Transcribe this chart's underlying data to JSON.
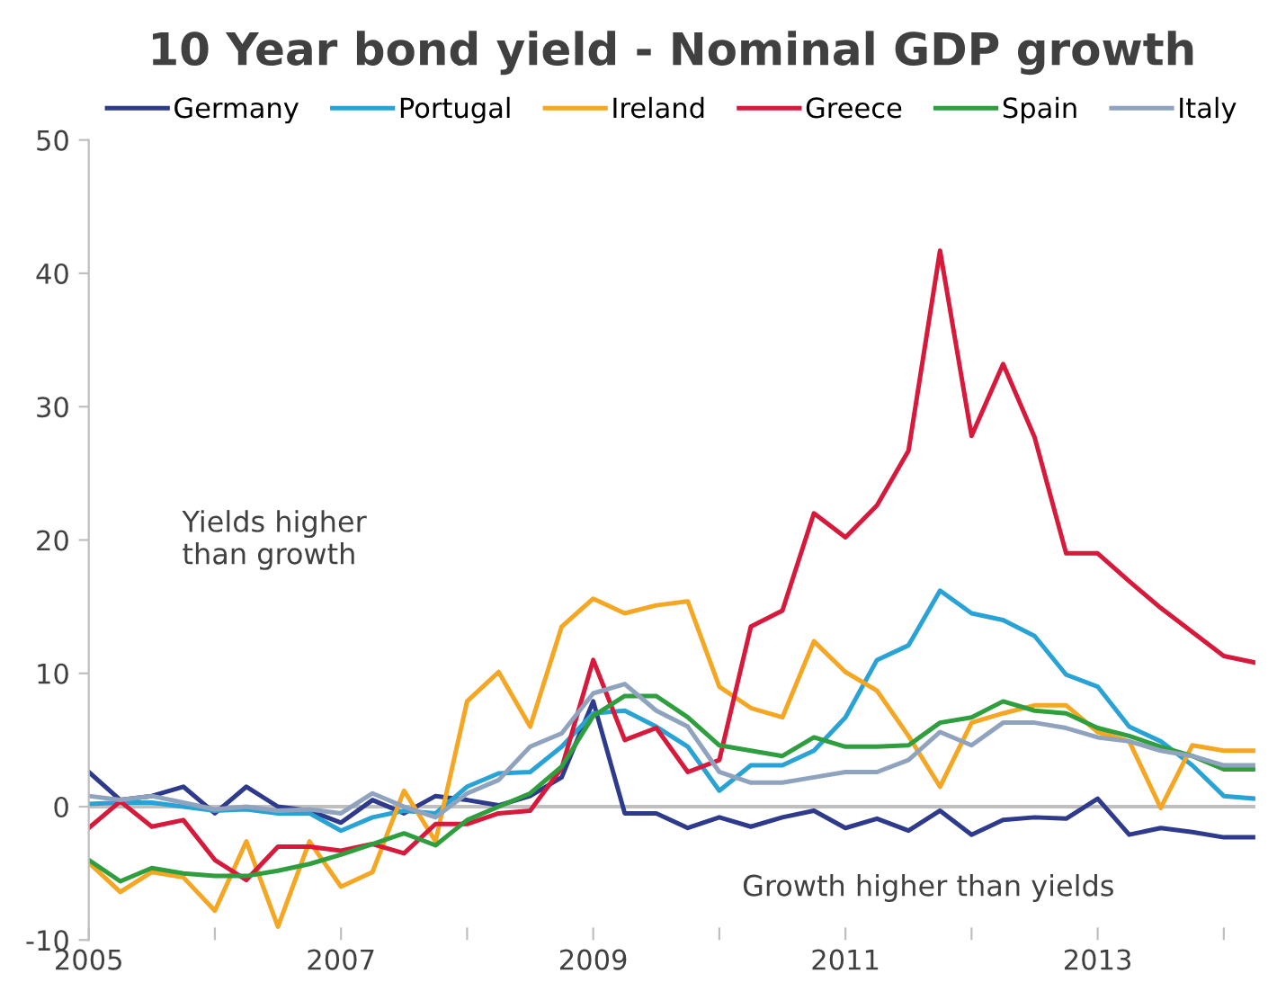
{
  "chart_data": {
    "type": "line",
    "title": "10 Year bond yield - Nominal GDP growth",
    "x": [
      2005.0,
      2005.25,
      2005.5,
      2005.75,
      2006.0,
      2006.25,
      2006.5,
      2006.75,
      2007.0,
      2007.25,
      2007.5,
      2007.75,
      2008.0,
      2008.25,
      2008.5,
      2008.75,
      2009.0,
      2009.25,
      2009.5,
      2009.75,
      2010.0,
      2010.25,
      2010.5,
      2010.75,
      2011.0,
      2011.25,
      2011.5,
      2011.75,
      2012.0,
      2012.25,
      2012.5,
      2012.75,
      2013.0,
      2013.25,
      2013.5,
      2013.75,
      2014.0,
      2014.25
    ],
    "series": [
      {
        "name": "Germany",
        "color": "#2e3a8c",
        "values": [
          2.6,
          0.5,
          0.8,
          1.5,
          -0.5,
          1.5,
          0,
          -0.3,
          -1.2,
          0.5,
          -0.5,
          0.8,
          0.5,
          0.1,
          0.8,
          2.2,
          7.9,
          -0.5,
          -0.5,
          -1.6,
          -0.8,
          -1.5,
          -0.8,
          -0.3,
          -1.6,
          -0.9,
          -1.8,
          -0.3,
          -2.1,
          -1.0,
          -0.8,
          -0.9,
          0.6,
          -2.1,
          -1.6,
          -1.9,
          -2.3,
          -2.3
        ]
      },
      {
        "name": "Portugal",
        "color": "#29a3d6",
        "values": [
          0.2,
          0.3,
          0.3,
          0,
          -0.3,
          -0.2,
          -0.5,
          -0.5,
          -1.8,
          -0.8,
          -0.3,
          -0.5,
          1.5,
          2.5,
          2.6,
          4.5,
          7.0,
          7.2,
          6.0,
          4.5,
          1.2,
          3.1,
          3.1,
          4.2,
          6.7,
          11.0,
          12.1,
          16.2,
          14.5,
          14.0,
          12.8,
          9.9,
          9.0,
          6.0,
          4.9,
          3.1,
          0.8,
          0.6
        ]
      },
      {
        "name": "Ireland",
        "color": "#f5a623",
        "values": [
          -4.2,
          -6.4,
          -4.9,
          -5.3,
          -7.8,
          -2.6,
          -9.0,
          -2.6,
          -6.0,
          -4.9,
          1.2,
          -2.6,
          7.9,
          10.1,
          6.0,
          13.5,
          15.6,
          14.5,
          15.1,
          15.4,
          9.0,
          7.4,
          6.7,
          12.4,
          10.1,
          8.7,
          5.3,
          1.5,
          6.3,
          7.0,
          7.6,
          7.6,
          5.6,
          4.9,
          -0.1,
          4.6,
          4.2,
          4.2
        ]
      },
      {
        "name": "Greece",
        "color": "#d7193c",
        "values": [
          -1.6,
          0.4,
          -1.5,
          -1.0,
          -4.0,
          -5.5,
          -3.0,
          -3.0,
          -3.3,
          -2.8,
          -3.5,
          -1.3,
          -1.3,
          -0.5,
          -0.3,
          2.9,
          11.0,
          5.0,
          5.9,
          2.6,
          3.5,
          13.5,
          14.7,
          22.0,
          20.2,
          22.6,
          26.7,
          41.7,
          27.8,
          33.2,
          27.7,
          19.0,
          19.0,
          16.9,
          14.9,
          13.1,
          11.3,
          10.8
        ]
      },
      {
        "name": "Spain",
        "color": "#2e9e3e",
        "values": [
          -4.0,
          -5.6,
          -4.6,
          -5.0,
          -5.2,
          -5.2,
          -4.8,
          -4.3,
          -3.6,
          -2.8,
          -2.0,
          -2.9,
          -1.0,
          0,
          1.0,
          3.0,
          6.8,
          8.3,
          8.3,
          6.7,
          4.6,
          4.2,
          3.8,
          5.2,
          4.5,
          4.5,
          4.6,
          6.3,
          6.7,
          7.9,
          7.2,
          7.0,
          5.9,
          5.3,
          4.5,
          3.8,
          2.8,
          2.8
        ]
      },
      {
        "name": "Italy",
        "color": "#8fa3bf",
        "values": [
          0.8,
          0.5,
          0.8,
          0.3,
          -0.2,
          0,
          -0.3,
          -0.2,
          -0.5,
          1.0,
          0,
          -0.8,
          1.0,
          2.0,
          4.5,
          5.5,
          8.5,
          9.2,
          7.2,
          6.0,
          2.6,
          1.8,
          1.8,
          2.2,
          2.6,
          2.6,
          3.5,
          5.6,
          4.6,
          6.3,
          6.3,
          5.9,
          5.2,
          4.9,
          4.2,
          3.8,
          3.1,
          3.1
        ]
      }
    ],
    "xlim": [
      2005,
      2014.25
    ],
    "xticks": [
      2005,
      {
        "value": 2006,
        "label": null
      },
      2007,
      {
        "value": 2008,
        "label": null
      },
      2009,
      {
        "value": 2010,
        "label": null
      },
      2011,
      {
        "value": 2012,
        "label": null
      },
      2013,
      {
        "value": 2014,
        "label": null
      }
    ],
    "ylim": [
      -10,
      50
    ],
    "yticks": [
      -10,
      0,
      10,
      20,
      30,
      40,
      50
    ],
    "ref_lines": [
      {
        "axis": "y",
        "value": 0,
        "color": "#bfbfbf"
      }
    ],
    "annotations": [
      "Yields higher\nthan growth",
      "Growth higher than yields"
    ],
    "legend": "top",
    "grid": false,
    "marker": "none",
    "line_style": "solid"
  }
}
